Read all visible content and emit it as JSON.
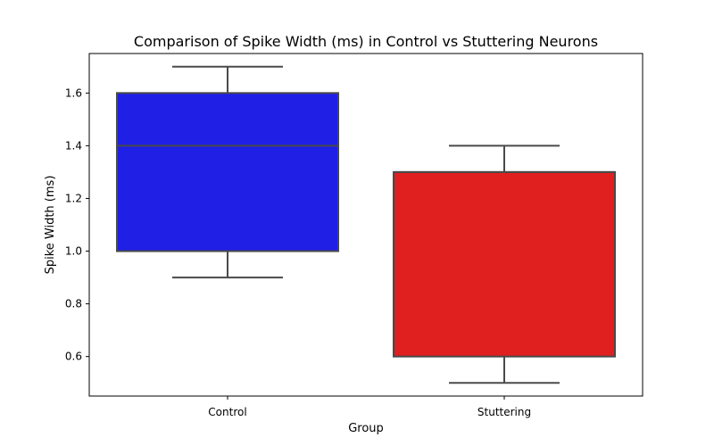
{
  "chart_data": {
    "type": "box",
    "title": "Comparison of Spike Width (ms) in Control vs Stuttering Neurons",
    "xlabel": "Group",
    "ylabel": "Spike Width (ms)",
    "ylim": [
      0.45,
      1.75
    ],
    "yticks": [
      "0.6",
      "0.8",
      "1.0",
      "1.2",
      "1.4",
      "1.6"
    ],
    "grid": false,
    "categories": [
      "Control",
      "Stuttering"
    ],
    "boxes": [
      {
        "category": "Control",
        "whisker_low": 0.9,
        "q1": 1.0,
        "median": 1.4,
        "q3": 1.6,
        "whisker_high": 1.7,
        "color": "#1f1fe6"
      },
      {
        "category": "Stuttering",
        "whisker_low": 0.5,
        "q1": 0.6,
        "median": 1.3,
        "q3": 1.3,
        "whisker_high": 1.4,
        "color": "#e01f1f"
      }
    ],
    "line_color": "#4a4a4a"
  }
}
